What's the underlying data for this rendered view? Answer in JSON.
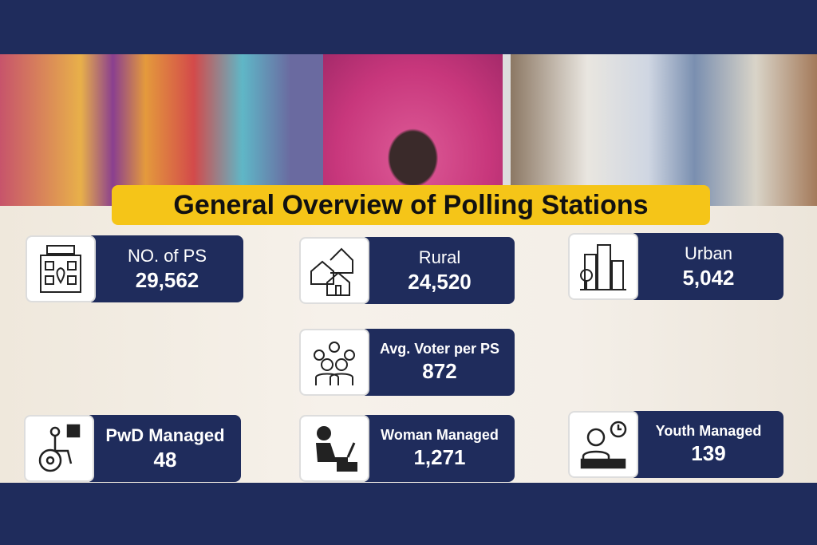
{
  "title": "General Overview of Polling Stations",
  "stats": [
    {
      "label": "NO. of PS",
      "value": "29,562",
      "icon": "vote-building-icon"
    },
    {
      "label": "Rural",
      "value": "24,520",
      "icon": "rural-houses-icon"
    },
    {
      "label": "Urban",
      "value": "5,042",
      "icon": "urban-buildings-icon"
    },
    {
      "label": "Avg. Voter per PS",
      "value": "872",
      "icon": "voters-group-icon"
    },
    {
      "label": "PwD Managed",
      "value": "48",
      "icon": "wheelchair-icon"
    },
    {
      "label": "Woman Managed",
      "value": "1,271",
      "icon": "woman-laptop-icon"
    },
    {
      "label": "Youth Managed",
      "value": "139",
      "icon": "youth-desk-icon"
    }
  ],
  "colors": {
    "navy": "#1f2c5c",
    "accent": "#f5c518"
  }
}
